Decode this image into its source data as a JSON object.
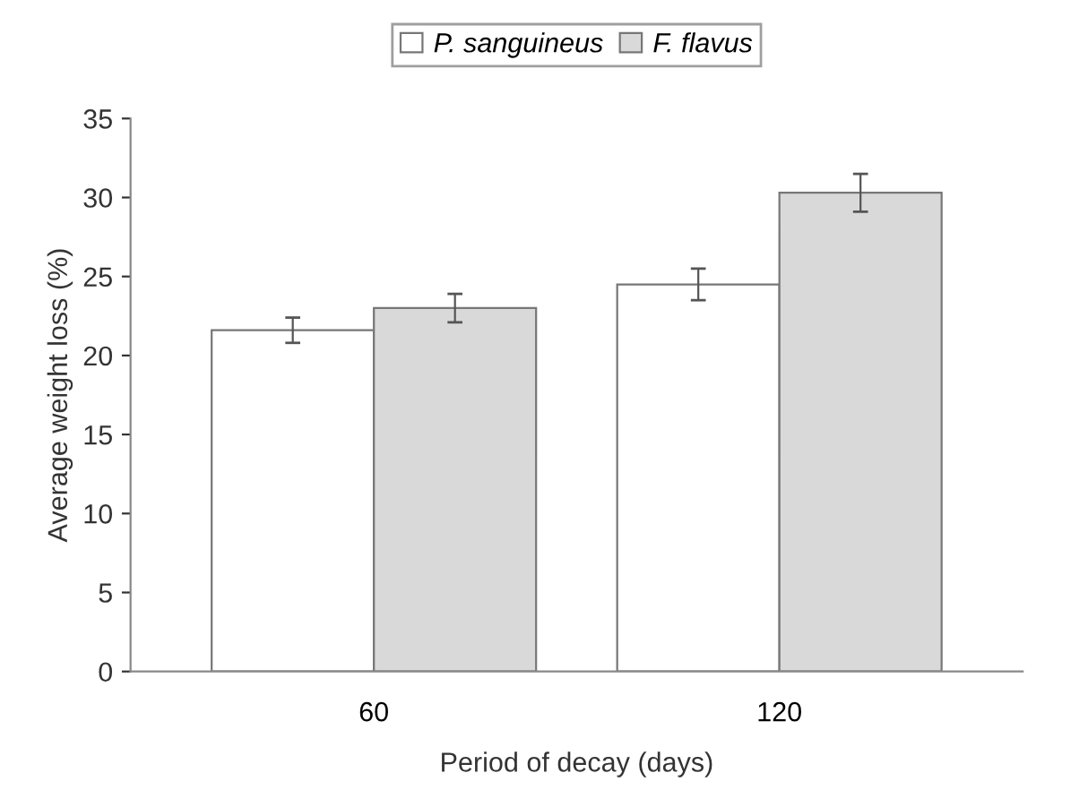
{
  "chart_data": {
    "type": "bar",
    "xlabel": "Period of decay (days)",
    "ylabel": "Average weight loss (%)",
    "categories": [
      "60",
      "120"
    ],
    "series": [
      {
        "name": "P. sanguineus",
        "color": "#ffffff",
        "values": [
          21.6,
          24.5
        ],
        "errors": [
          0.8,
          1.0
        ]
      },
      {
        "name": "F. flavus",
        "color": "#d9d9d9",
        "values": [
          23.0,
          30.3
        ],
        "errors": [
          0.9,
          1.2
        ]
      }
    ],
    "ylim": [
      0,
      35
    ],
    "yticks": [
      0,
      5,
      10,
      15,
      20,
      25,
      30,
      35
    ],
    "legend": "top",
    "grid": false
  }
}
